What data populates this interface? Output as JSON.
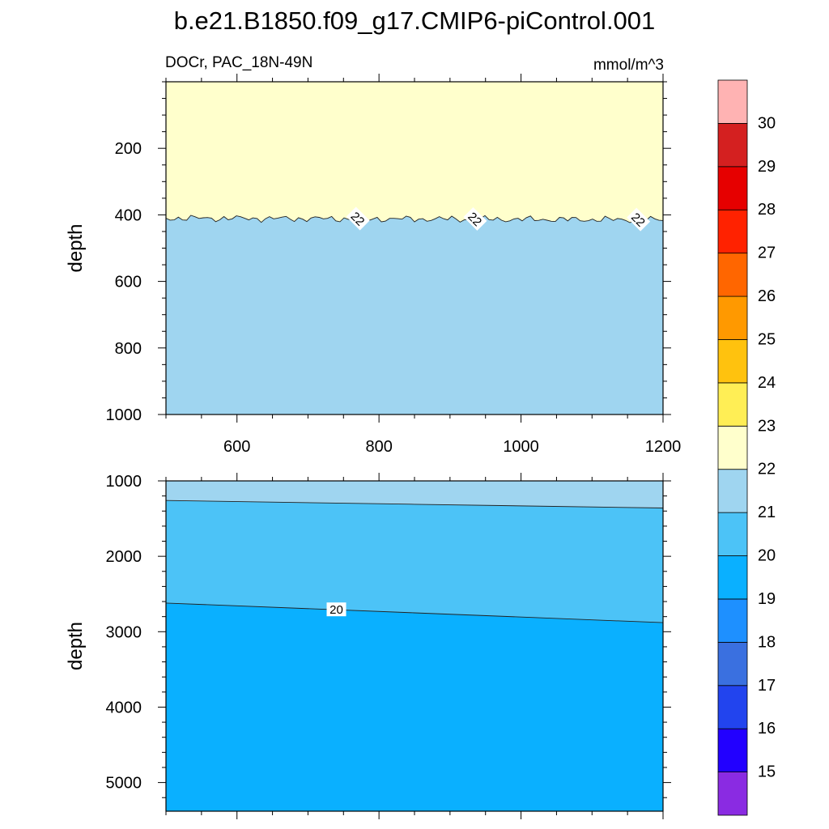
{
  "title": "b.e21.B1850.f09_g17.CMIP6-piControl.001",
  "subtitle_left": "DOCr, PAC_18N-49N",
  "subtitle_right": "mmol/m^3",
  "chart_data": {
    "type": "contour",
    "colorbar": {
      "levels": [
        15,
        16,
        17,
        18,
        19,
        20,
        21,
        22,
        23,
        24,
        25,
        26,
        27,
        28,
        29,
        30
      ],
      "colors": [
        "#8a2be2",
        "#2200ff",
        "#2244ee",
        "#3a70e0",
        "#1e90ff",
        "#0ab0ff",
        "#4cc3f7",
        "#9fd5f0",
        "#ffffcc",
        "#ffee55",
        "#ffc20e",
        "#ff9900",
        "#ff6600",
        "#ff2200",
        "#e60000",
        "#d42020",
        "#ffb3b3"
      ]
    },
    "panels": [
      {
        "name": "upper",
        "ylabel": "depth",
        "xlim": [
          500,
          1200
        ],
        "ylim": [
          1000,
          0
        ],
        "xticks": [
          600,
          800,
          1000,
          1200
        ],
        "yticks": [
          200,
          400,
          600,
          800,
          1000
        ],
        "regions": [
          {
            "range": "22-23",
            "color": "#ffffcc"
          },
          {
            "range": "21-22",
            "color": "#9fd5f0"
          }
        ],
        "contours": [
          {
            "level": 22,
            "x": [
              500,
              1200
            ],
            "y": [
              410,
              415
            ],
            "label_x": [
              770,
              935,
              1165
            ],
            "label": "22"
          }
        ]
      },
      {
        "name": "lower",
        "ylabel": "depth",
        "xlim": [
          500,
          1200
        ],
        "ylim": [
          5380,
          1000
        ],
        "xticks": [
          600,
          800,
          1000,
          1200
        ],
        "yticks": [
          1000,
          2000,
          3000,
          4000,
          5000
        ],
        "regions": [
          {
            "range": "21-22",
            "color": "#9fd5f0"
          },
          {
            "range": "20-21",
            "color": "#4cc3f7"
          },
          {
            "range": "19-20",
            "color": "#0ab0ff"
          }
        ],
        "contours": [
          {
            "level": 21,
            "x": [
              500,
              1200
            ],
            "y": [
              1260,
              1360
            ]
          },
          {
            "level": 20,
            "x": [
              500,
              1200
            ],
            "y": [
              2620,
              2880
            ],
            "label_x": [
              740
            ],
            "label": "20"
          }
        ]
      }
    ]
  }
}
